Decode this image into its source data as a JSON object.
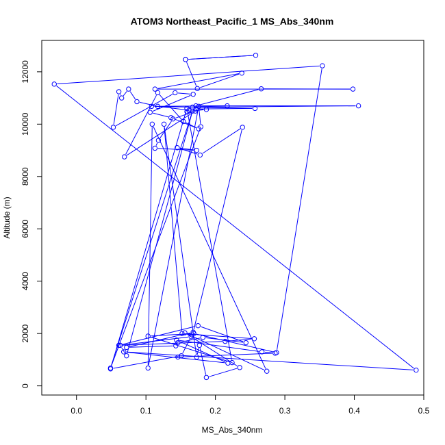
{
  "chart_data": {
    "type": "line",
    "title": "ATOM3 Northeast_Pacific_1 MS_Abs_340nm",
    "xlabel": "MS_Abs_340nm",
    "ylabel": "Altitude (m)",
    "xlim": [
      -0.05,
      0.5
    ],
    "ylim": [
      -350,
      13200
    ],
    "x_ticks": [
      0.0,
      0.1,
      0.2,
      0.3,
      0.4,
      0.5
    ],
    "x_tick_labels": [
      "0.0",
      "0.1",
      "0.2",
      "0.3",
      "0.4",
      "0.5"
    ],
    "y_ticks": [
      0,
      2000,
      4000,
      6000,
      8000,
      10000,
      12000
    ],
    "y_tick_labels": [
      "0",
      "2000",
      "4000",
      "6000",
      "8000",
      "10000",
      "12000"
    ],
    "grid": false,
    "legend": "none",
    "series_color": "#0000ff",
    "series": [
      {
        "x": [
          0.157,
          0.258,
          0.157,
          0.174,
          0.238,
          0.113,
          0.398,
          0.266,
          0.172,
          0.406,
          0.167,
          0.217,
          0.108,
          0.257,
          0.172,
          0.187,
          0.159,
          0.162,
          0.117,
          0.087,
          0.075,
          0.065,
          0.061,
          0.053,
          0.142,
          0.168,
          0.106,
          0.136,
          0.176,
          0.154,
          0.117,
          0.069,
          0.171,
          0.139,
          0.118,
          0.113,
          0.173,
          0.145,
          0.178,
          0.239,
          0.168,
          0.072,
          0.143,
          0.146,
          0.182,
          0.244,
          0.175,
          0.061,
          0.214,
          0.256,
          0.152,
          0.126,
          0.173,
          0.177,
          0.187,
          0.235,
          0.156,
          0.274,
          0.109,
          0.103,
          0.176,
          0.179,
          0.049,
          0.167,
          0.072,
          0.063,
          0.165,
          0.151,
          0.049,
          0.159,
          0.224,
          0.103,
          0.169,
          0.288,
          0.354,
          -0.032,
          0.489,
          0.068,
          0.218,
          0.144,
          0.267,
          0.286,
          0.146
        ],
        "y": [
          12470,
          12630,
          12470,
          11360,
          11950,
          11340,
          11340,
          11350,
          10700,
          10700,
          10650,
          10700,
          10680,
          10600,
          10580,
          10560,
          10480,
          10530,
          10680,
          10860,
          11340,
          11000,
          11240,
          9880,
          11200,
          11140,
          10450,
          10250,
          9820,
          10100,
          11200,
          8750,
          10500,
          10200,
          9380,
          9080,
          9000,
          9100,
          8820,
          9880,
          2050,
          1470,
          1530,
          1650,
          1850,
          1650,
          2300,
          1550,
          1700,
          1800,
          2000,
          10000,
          1100,
          1550,
          320,
          700,
          2030,
          560,
          10000,
          680,
          10680,
          9900,
          680,
          10500,
          1150,
          1550,
          1880,
          1150,
          650,
          10600,
          890,
          1900,
          2000,
          1270,
          12230,
          11530,
          600,
          1300,
          870,
          1750,
          1300,
          1250,
          1100
        ]
      }
    ]
  }
}
